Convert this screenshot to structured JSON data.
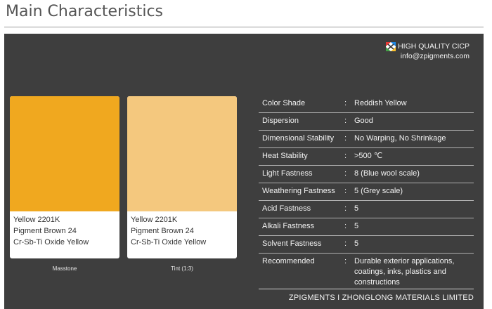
{
  "heading": "Main Characteristics",
  "brand": {
    "badge": "HIGH QUALITY CICP",
    "email": "info@zpigments.com"
  },
  "swatches": [
    {
      "color": "#f0a81f",
      "line1": "Yellow 2201K",
      "line2": "Pigment Brown 24",
      "line3": "Cr-Sb-Ti Oxide Yellow",
      "caption": "Masstone"
    },
    {
      "color": "#f4c87e",
      "line1": "Yellow 2201K",
      "line2": "Pigment Brown 24",
      "line3": "Cr-Sb-Ti Oxide Yellow",
      "caption": "Tint (1:3)"
    }
  ],
  "properties": [
    {
      "label": "Color Shade",
      "sep": ":",
      "value": "Reddish Yellow"
    },
    {
      "label": "Dispersion",
      "sep": ":",
      "value": "Good"
    },
    {
      "label": "Dimensional Stability",
      "sep": ":",
      "value": "No Warping, No Shrinkage"
    },
    {
      "label": "Heat Stability",
      "sep": ":",
      "value": ">500 ℃"
    },
    {
      "label": "Light Fastness",
      "sep": ":",
      "value": "8 (Blue wool scale)"
    },
    {
      "label": "Weathering  Fastness",
      "sep": ":",
      "value": "5 (Grey scale)"
    },
    {
      "label": "Acid Fastness",
      "sep": ":",
      "value": "5"
    },
    {
      "label": "Alkali Fastness",
      "sep": ":",
      "value": "5"
    },
    {
      "label": "Solvent Fastness",
      "sep": ":",
      "value": "5"
    },
    {
      "label": "Recommended",
      "sep": ":",
      "value": "Durable exterior applications, coatings, inks, plastics and constructions"
    }
  ],
  "footer": "ZPIGMENTS I ZHONGLONG MATERIALS LIMITED"
}
